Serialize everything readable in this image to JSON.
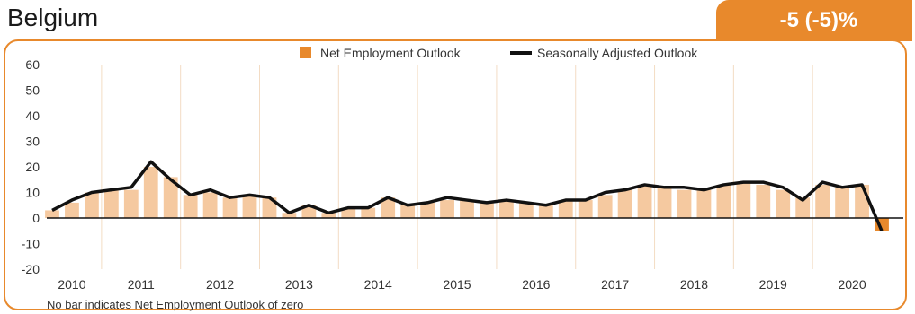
{
  "country": "Belgium",
  "headline_value": "-5 (-5)%",
  "footnote": "No bar indicates Net Employment Outlook of zero",
  "colors": {
    "bar": "#f5c9a0",
    "bar_latest": "#e8892c",
    "line": "#111111",
    "accent": "#e8892c",
    "grid": "#f3dcc4"
  },
  "chart_data": {
    "type": "bar",
    "title": "",
    "ylim": [
      -20,
      60
    ],
    "y_ticks": [
      "60",
      "50",
      "40",
      "30",
      "20",
      "10",
      "0",
      "-10",
      "-20"
    ],
    "year_labels": [
      "2010",
      "2011",
      "2012",
      "2013",
      "2014",
      "2015",
      "2016",
      "2017",
      "2018",
      "2019",
      "2020"
    ],
    "legend": {
      "position": "top",
      "bar_label": "Net Employment Outlook",
      "line_label": "Seasonally Adjusted Outlook"
    },
    "series": [
      {
        "name": "Net Employment Outlook",
        "kind": "bar",
        "values": [
          3,
          6,
          10,
          11,
          11,
          20,
          16,
          9,
          10,
          8,
          9,
          8,
          2,
          5,
          2,
          4,
          4,
          8,
          5,
          6,
          7,
          7,
          6,
          7,
          6,
          5,
          7,
          7,
          9,
          11,
          13,
          12,
          11,
          11,
          13,
          14,
          13,
          11,
          8,
          13,
          12,
          13,
          -5
        ]
      },
      {
        "name": "Seasonally Adjusted Outlook",
        "kind": "line",
        "values": [
          3,
          7,
          10,
          11,
          12,
          22,
          15,
          9,
          11,
          8,
          9,
          8,
          2,
          5,
          2,
          4,
          4,
          8,
          5,
          6,
          8,
          7,
          6,
          7,
          6,
          5,
          7,
          7,
          10,
          11,
          13,
          12,
          12,
          11,
          13,
          14,
          14,
          12,
          7,
          14,
          12,
          13,
          -5
        ]
      }
    ]
  }
}
